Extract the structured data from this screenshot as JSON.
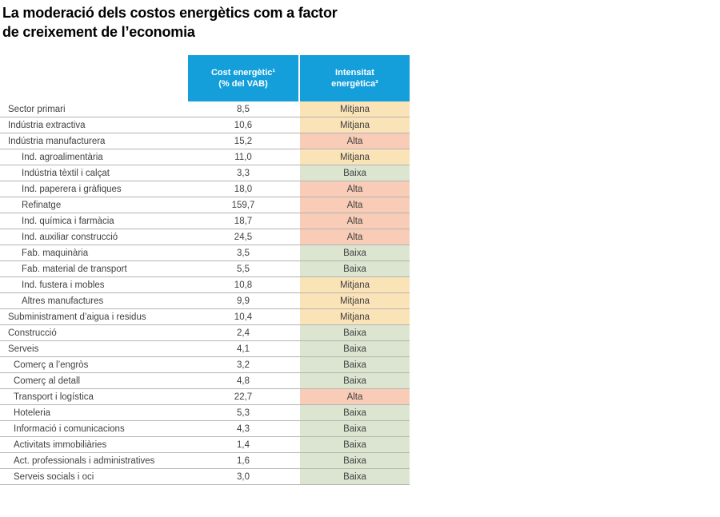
{
  "title": {
    "line1": "La moderació dels costos energètics com a factor",
    "line2": "de creixement de l’economia"
  },
  "chart_data": {
    "type": "table",
    "columns": [
      {
        "id": "cost",
        "label_line1": "Cost energètic¹",
        "label_line2": "(% del VAB)"
      },
      {
        "id": "intensity",
        "label_line1": "Intensitat",
        "label_line2": "energètica²"
      }
    ],
    "intensity_scale": [
      "Baixa",
      "Mitjana",
      "Alta"
    ],
    "rows": [
      {
        "sector": "Sector primari",
        "indent": 0,
        "cost": "8,5",
        "cost_value": 8.5,
        "intensity": "Mitjana"
      },
      {
        "sector": "Indústria extractiva",
        "indent": 0,
        "cost": "10,6",
        "cost_value": 10.6,
        "intensity": "Mitjana"
      },
      {
        "sector": "Indústria manufacturera",
        "indent": 0,
        "cost": "15,2",
        "cost_value": 15.2,
        "intensity": "Alta"
      },
      {
        "sector": "Ind. agroalimentària",
        "indent": 2,
        "cost": "11,0",
        "cost_value": 11.0,
        "intensity": "Mitjana"
      },
      {
        "sector": "Indústria tèxtil i calçat",
        "indent": 2,
        "cost": "3,3",
        "cost_value": 3.3,
        "intensity": "Baixa"
      },
      {
        "sector": "Ind. paperera i gràfiques",
        "indent": 2,
        "cost": "18,0",
        "cost_value": 18.0,
        "intensity": "Alta"
      },
      {
        "sector": "Refinatge",
        "indent": 2,
        "cost": "159,7",
        "cost_value": 159.7,
        "intensity": "Alta"
      },
      {
        "sector": "Ind. química i farmàcia",
        "indent": 2,
        "cost": "18,7",
        "cost_value": 18.7,
        "intensity": "Alta"
      },
      {
        "sector": "Ind. auxiliar construcció",
        "indent": 2,
        "cost": "24,5",
        "cost_value": 24.5,
        "intensity": "Alta"
      },
      {
        "sector": "Fab. maquinària",
        "indent": 2,
        "cost": "3,5",
        "cost_value": 3.5,
        "intensity": "Baixa"
      },
      {
        "sector": "Fab. material de transport",
        "indent": 2,
        "cost": "5,5",
        "cost_value": 5.5,
        "intensity": "Baixa"
      },
      {
        "sector": "Ind. fustera i mobles",
        "indent": 2,
        "cost": "10,8",
        "cost_value": 10.8,
        "intensity": "Mitjana"
      },
      {
        "sector": "Altres manufactures",
        "indent": 2,
        "cost": "9,9",
        "cost_value": 9.9,
        "intensity": "Mitjana"
      },
      {
        "sector": "Subministrament d’aigua i residus",
        "indent": 0,
        "cost": "10,4",
        "cost_value": 10.4,
        "intensity": "Mitjana"
      },
      {
        "sector": "Construcció",
        "indent": 0,
        "cost": "2,4",
        "cost_value": 2.4,
        "intensity": "Baixa"
      },
      {
        "sector": "Serveis",
        "indent": 0,
        "cost": "4,1",
        "cost_value": 4.1,
        "intensity": "Baixa"
      },
      {
        "sector": "Comerç a l’engròs",
        "indent": 1,
        "cost": "3,2",
        "cost_value": 3.2,
        "intensity": "Baixa"
      },
      {
        "sector": "Comerç al detall",
        "indent": 1,
        "cost": "4,8",
        "cost_value": 4.8,
        "intensity": "Baixa"
      },
      {
        "sector": "Transport i logística",
        "indent": 1,
        "cost": "22,7",
        "cost_value": 22.7,
        "intensity": "Alta"
      },
      {
        "sector": "Hoteleria",
        "indent": 1,
        "cost": "5,3",
        "cost_value": 5.3,
        "intensity": "Baixa"
      },
      {
        "sector": "Informació i comunicacions",
        "indent": 1,
        "cost": "4,3",
        "cost_value": 4.3,
        "intensity": "Baixa"
      },
      {
        "sector": "Activitats immobiliàries",
        "indent": 1,
        "cost": "1,4",
        "cost_value": 1.4,
        "intensity": "Baixa"
      },
      {
        "sector": "Act. professionals i administratives",
        "indent": 1,
        "cost": "1,6",
        "cost_value": 1.6,
        "intensity": "Baixa"
      },
      {
        "sector": "Serveis socials i oci",
        "indent": 1,
        "cost": "3,0",
        "cost_value": 3.0,
        "intensity": "Baixa"
      }
    ]
  },
  "palette": {
    "header_bg": "#149FDB",
    "header_text": "#FFFFFF",
    "row_line": "#B3B3B3",
    "text": "#414141",
    "title_text": "#000000",
    "intensity_colors": {
      "Mitjana": "#FBE3B8",
      "Alta": "#F8CCB6",
      "Baixa": "#DBE5D0"
    }
  }
}
